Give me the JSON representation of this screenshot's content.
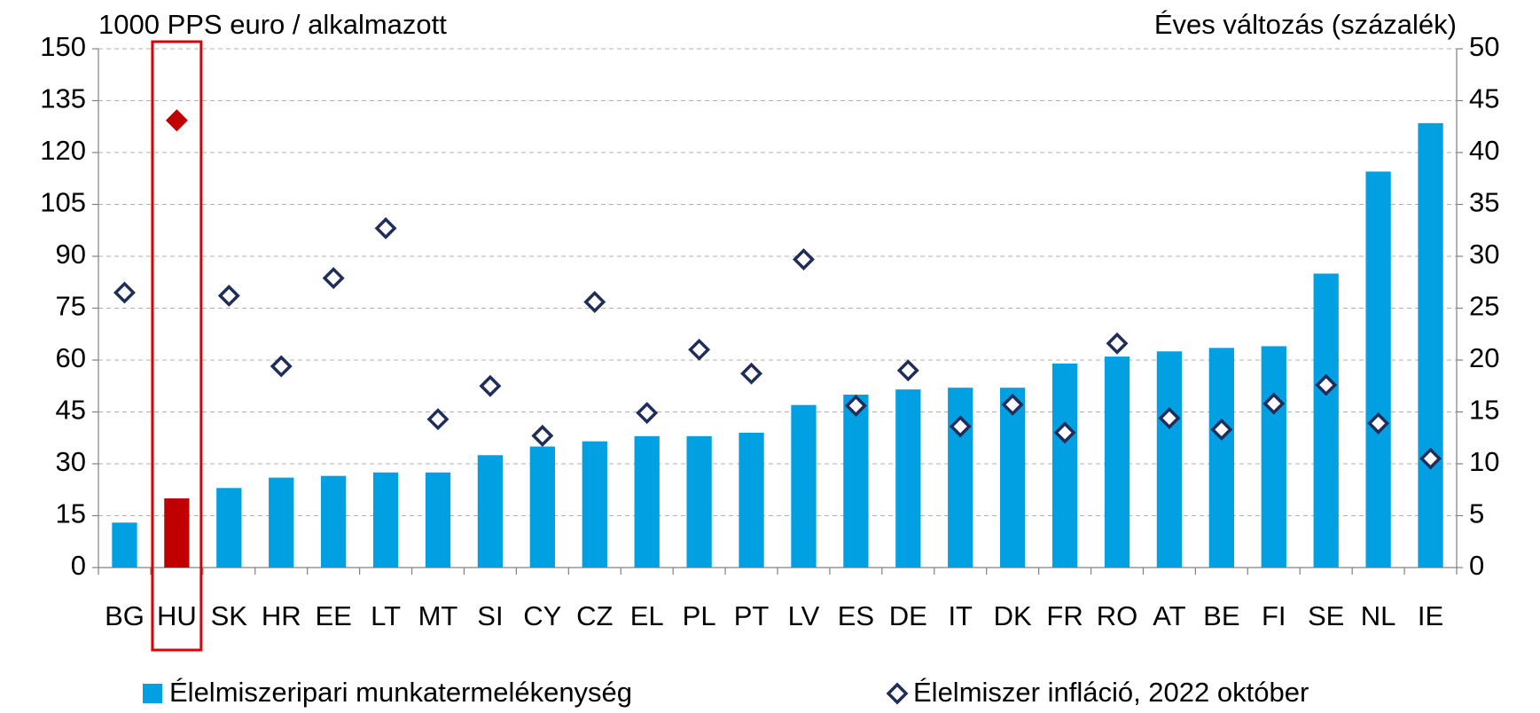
{
  "chart_data": {
    "type": "bar_scatter",
    "ylabel": "1000 PPS euro / alkalmazott",
    "y2label": "Éves változás (százalék)",
    "categories": [
      "BG",
      "HU",
      "SK",
      "HR",
      "EE",
      "LT",
      "MT",
      "SI",
      "CY",
      "CZ",
      "EL",
      "PL",
      "PT",
      "LV",
      "ES",
      "DE",
      "IT",
      "DK",
      "FR",
      "RO",
      "AT",
      "BE",
      "FI",
      "SE",
      "NL",
      "IE"
    ],
    "series": [
      {
        "name": "Élelmiszeripari munkatermelékenység",
        "type": "bar",
        "color": "#00a0e3",
        "colors": [
          "#00a0e3",
          "#c00000",
          "#00a0e3",
          "#00a0e3",
          "#00a0e3",
          "#00a0e3",
          "#00a0e3",
          "#00a0e3",
          "#00a0e3",
          "#00a0e3",
          "#00a0e3",
          "#00a0e3",
          "#00a0e3",
          "#00a0e3",
          "#00a0e3",
          "#00a0e3",
          "#00a0e3",
          "#00a0e3",
          "#00a0e3",
          "#00a0e3",
          "#00a0e3",
          "#00a0e3",
          "#00a0e3",
          "#00a0e3",
          "#00a0e3",
          "#00a0e3"
        ],
        "values": [
          13,
          20,
          23,
          26,
          26.5,
          27.5,
          27.5,
          32.5,
          35,
          36.5,
          38,
          38,
          39,
          47,
          50,
          51.5,
          52,
          52,
          59,
          61,
          62.5,
          63.5,
          64,
          85,
          114.5,
          128.5
        ]
      },
      {
        "name": "Élelmiszer infláció, 2022 október",
        "type": "scatter",
        "axis": "y2",
        "color": "#1f2d5a",
        "colors": [
          "#1f2d5a",
          "#c00000",
          "#1f2d5a",
          "#1f2d5a",
          "#1f2d5a",
          "#1f2d5a",
          "#1f2d5a",
          "#1f2d5a",
          "#1f2d5a",
          "#1f2d5a",
          "#1f2d5a",
          "#1f2d5a",
          "#1f2d5a",
          "#1f2d5a",
          "#1f2d5a",
          "#1f2d5a",
          "#1f2d5a",
          "#1f2d5a",
          "#1f2d5a",
          "#1f2d5a",
          "#1f2d5a",
          "#1f2d5a",
          "#1f2d5a",
          "#1f2d5a",
          "#1f2d5a",
          "#1f2d5a"
        ],
        "values": [
          26.5,
          43.1,
          26.2,
          19.4,
          27.9,
          32.7,
          14.3,
          17.5,
          12.7,
          25.6,
          14.9,
          21.0,
          18.7,
          29.7,
          15.6,
          19.0,
          13.6,
          15.7,
          13.0,
          21.6,
          14.4,
          13.3,
          15.8,
          17.6,
          13.9,
          10.5
        ]
      }
    ],
    "ylim": [
      0,
      150
    ],
    "yticks": [
      0,
      15,
      30,
      45,
      60,
      75,
      90,
      105,
      120,
      135,
      150
    ],
    "y2lim": [
      0,
      50
    ],
    "y2ticks": [
      0,
      5,
      10,
      15,
      20,
      25,
      30,
      35,
      40,
      45,
      50
    ],
    "grid": true,
    "legend": "bottom"
  }
}
